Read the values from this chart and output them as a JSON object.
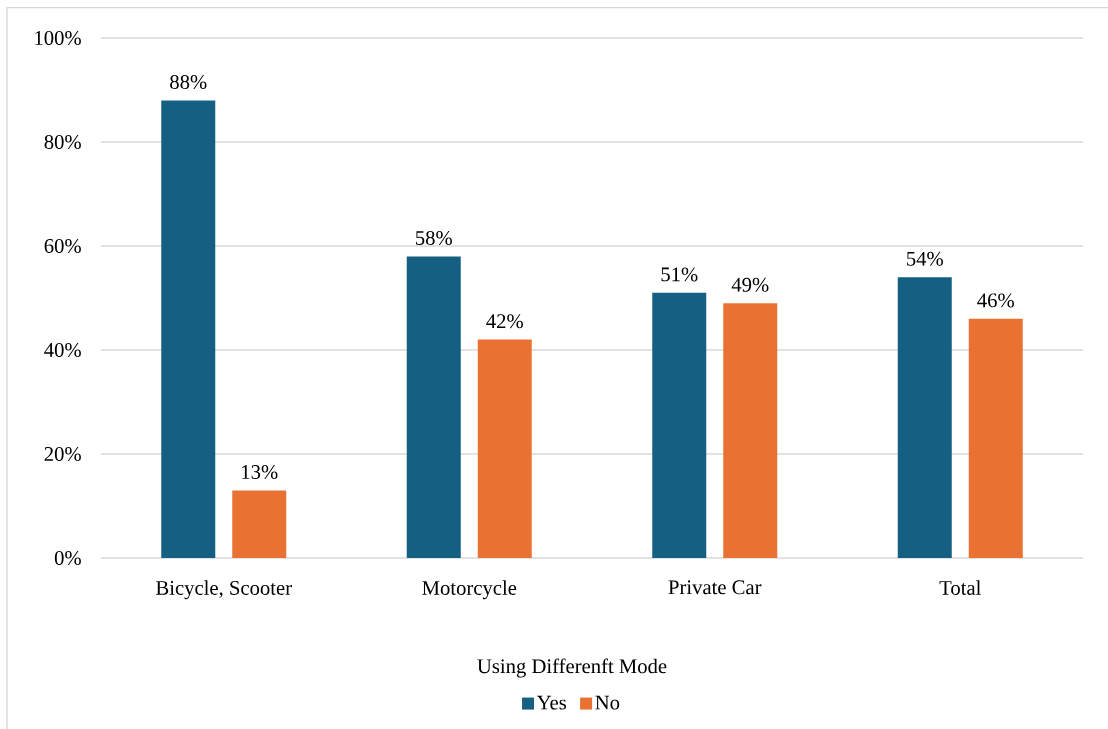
{
  "chart_data": {
    "type": "bar",
    "categories": [
      "Bicycle, Scooter",
      "Motorcycle",
      "Private Car",
      "Total"
    ],
    "series": [
      {
        "name": "Yes",
        "color": "#156082",
        "values": [
          88,
          58,
          51,
          54
        ],
        "value_labels": [
          "88%",
          "58%",
          "51%",
          "54%"
        ]
      },
      {
        "name": "No",
        "color": "#e97132",
        "values": [
          13,
          42,
          49,
          46
        ],
        "value_labels": [
          "13%",
          "42%",
          "49%",
          "46%"
        ]
      }
    ],
    "legend_title": "Using Differenft Mode",
    "legend": "bottom",
    "grid": "y",
    "ylim": [
      0,
      100
    ],
    "yticks": [
      {
        "value": 0,
        "label": "0%"
      },
      {
        "value": 20,
        "label": "20%"
      },
      {
        "value": 40,
        "label": "40%"
      },
      {
        "value": 60,
        "label": "60%"
      },
      {
        "value": 80,
        "label": "80%"
      },
      {
        "value": 100,
        "label": "100%"
      }
    ]
  }
}
